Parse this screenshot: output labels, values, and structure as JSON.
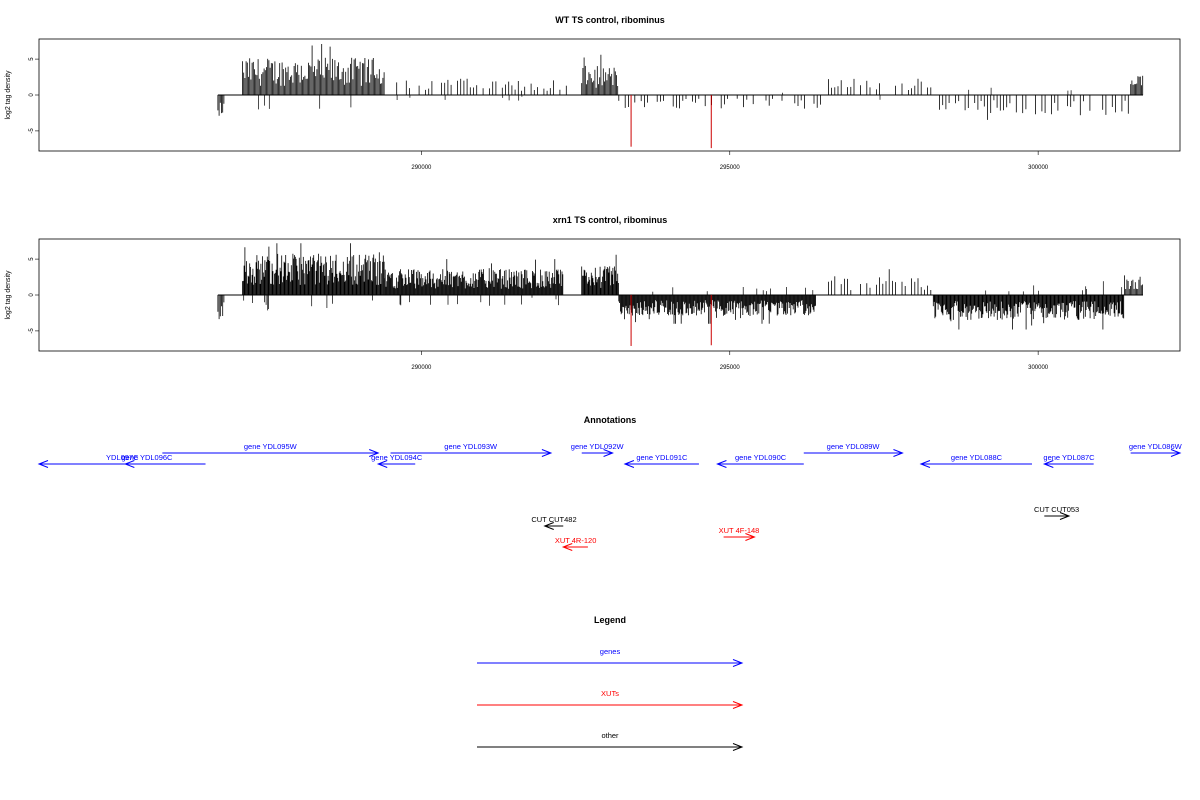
{
  "colors": {
    "gene": "#0000ff",
    "xut": "#ff0000",
    "other": "#000000",
    "signal": "#000000",
    "highlight": "#cc0000"
  },
  "chart_data": [
    {
      "type": "bar",
      "title": "WT TS control, ribominus",
      "ylabel": "log2 tag density",
      "xlim": [
        283800,
        302300
      ],
      "ylim": [
        -7.8,
        7.8
      ],
      "y_ticks": [
        -5,
        0,
        5
      ],
      "x_ticks": [
        290000,
        295000,
        300000
      ],
      "grid": false,
      "series": [
        {
          "color": "#000000",
          "segments": [
            {
              "x_start": 286700,
              "x_end": 286800,
              "pattern": "neg",
              "mean": -2.0
            },
            {
              "x_start": 287100,
              "x_end": 289400,
              "pattern": "pos",
              "mean": 3.6,
              "max": 7.1
            },
            {
              "x_start": 289600,
              "x_end": 292400,
              "pattern": "pos_sparse",
              "mean": 1.6
            },
            {
              "x_start": 292600,
              "x_end": 293200,
              "pattern": "pos",
              "mean": 2.8
            },
            {
              "x_start": 293200,
              "x_end": 296500,
              "pattern": "neg_sparse",
              "mean": -1.4
            },
            {
              "x_start": 296600,
              "x_end": 298300,
              "pattern": "pos_sparse",
              "mean": 1.6
            },
            {
              "x_start": 298400,
              "x_end": 301500,
              "pattern": "neg_sparse",
              "mean": -2.0
            },
            {
              "x_start": 301500,
              "x_end": 301700,
              "pattern": "pos",
              "mean": 1.9
            }
          ],
          "highlights": [
            {
              "x": 293400,
              "value": -7.2
            },
            {
              "x": 294700,
              "value": -7.4
            }
          ]
        }
      ]
    },
    {
      "type": "bar",
      "title": "xrn1 TS control, ribominus",
      "ylabel": "log2 tag density",
      "xlim": [
        283800,
        302300
      ],
      "ylim": [
        -7.8,
        7.8
      ],
      "y_ticks": [
        -5,
        0,
        5
      ],
      "x_ticks": [
        290000,
        295000,
        300000
      ],
      "grid": false,
      "series": [
        {
          "color": "#000000",
          "segments": [
            {
              "x_start": 286700,
              "x_end": 286800,
              "pattern": "neg",
              "mean": -2.5
            },
            {
              "x_start": 287100,
              "x_end": 289400,
              "pattern": "pos_dense",
              "mean": 4.0,
              "max": 7.2
            },
            {
              "x_start": 289400,
              "x_end": 292300,
              "pattern": "pos_dense",
              "mean": 2.5
            },
            {
              "x_start": 292600,
              "x_end": 293200,
              "pattern": "pos_dense",
              "mean": 2.8
            },
            {
              "x_start": 293200,
              "x_end": 296400,
              "pattern": "neg_dense",
              "mean": -2.0
            },
            {
              "x_start": 296600,
              "x_end": 298300,
              "pattern": "pos_sparse",
              "mean": 1.8
            },
            {
              "x_start": 298300,
              "x_end": 301400,
              "pattern": "neg_dense",
              "mean": -2.4
            },
            {
              "x_start": 301400,
              "x_end": 301700,
              "pattern": "pos",
              "mean": 2.2
            }
          ],
          "highlights": [
            {
              "x": 293400,
              "value": -7.1
            },
            {
              "x": 294700,
              "value": -7.0
            }
          ]
        }
      ]
    }
  ],
  "annotations": {
    "title": "Annotations",
    "features": [
      {
        "label": "YDL097C",
        "kind": "gene",
        "row": 2,
        "start": 283800,
        "end": 286500,
        "strand": "-"
      },
      {
        "label": "gene YDL096C",
        "kind": "gene",
        "row": 1,
        "start": 285200,
        "end": 285900,
        "strand": "-"
      },
      {
        "label": "gene YDL095W",
        "kind": "gene",
        "row": 0,
        "start": 285800,
        "end": 289300,
        "strand": "+"
      },
      {
        "label": "gene YDL094C",
        "kind": "gene",
        "row": 1,
        "start": 289300,
        "end": 289900,
        "strand": "-"
      },
      {
        "label": "gene YDL093W",
        "kind": "gene",
        "row": 0,
        "start": 289500,
        "end": 292100,
        "strand": "+"
      },
      {
        "label": "gene YDL092W",
        "kind": "gene",
        "row": 0,
        "start": 292600,
        "end": 293100,
        "strand": "+"
      },
      {
        "label": "gene YDL091C",
        "kind": "gene",
        "row": 1,
        "start": 293300,
        "end": 294500,
        "strand": "-"
      },
      {
        "label": "gene YDL090C",
        "kind": "gene",
        "row": 1,
        "start": 294800,
        "end": 296200,
        "strand": "-"
      },
      {
        "label": "gene YDL089W",
        "kind": "gene",
        "row": 0,
        "start": 296200,
        "end": 297800,
        "strand": "+"
      },
      {
        "label": "gene YDL088C",
        "kind": "gene",
        "row": 1,
        "start": 298100,
        "end": 299900,
        "strand": "-"
      },
      {
        "label": "gene YDL087C",
        "kind": "gene",
        "row": 1,
        "start": 300100,
        "end": 300900,
        "strand": "-"
      },
      {
        "label": "gene YDL086W",
        "kind": "gene",
        "row": 0,
        "start": 301500,
        "end": 302300,
        "strand": "+"
      },
      {
        "label": "CUT CUT482",
        "kind": "other",
        "row": 3,
        "start": 292000,
        "end": 292300,
        "strand": "-"
      },
      {
        "label": "XUT 4R-120",
        "kind": "xut",
        "row": 4,
        "start": 292300,
        "end": 292700,
        "strand": "-"
      },
      {
        "label": "XUT 4F-148",
        "kind": "xut",
        "row": 5,
        "start": 294900,
        "end": 295400,
        "strand": "+"
      },
      {
        "label": "CUT CUT053",
        "kind": "other",
        "row": 6,
        "start": 300100,
        "end": 300500,
        "strand": "+"
      }
    ]
  },
  "legend": {
    "title": "Legend",
    "entries": [
      {
        "label": "genes",
        "kind": "gene"
      },
      {
        "label": "XUTs",
        "kind": "xut"
      },
      {
        "label": "other",
        "kind": "other"
      }
    ]
  }
}
